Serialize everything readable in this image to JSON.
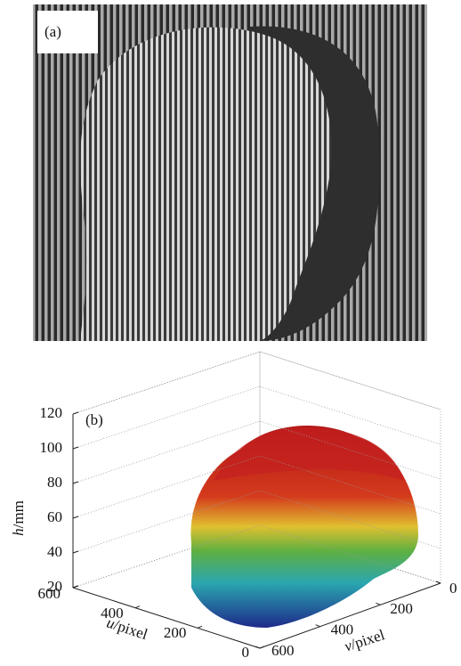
{
  "panel_a": {
    "label": "(a)"
  },
  "panel_b": {
    "label": "(b)",
    "z_axis": {
      "var": "h",
      "unit": "/mm",
      "ticks": [
        20,
        40,
        60,
        80,
        100,
        120
      ]
    },
    "u_axis": {
      "var": "u",
      "unit": "/pixel",
      "ticks": [
        0,
        200,
        400,
        600
      ]
    },
    "v_axis": {
      "var": "v",
      "unit": "/pixel",
      "ticks": [
        0,
        200,
        400,
        600
      ]
    }
  }
}
